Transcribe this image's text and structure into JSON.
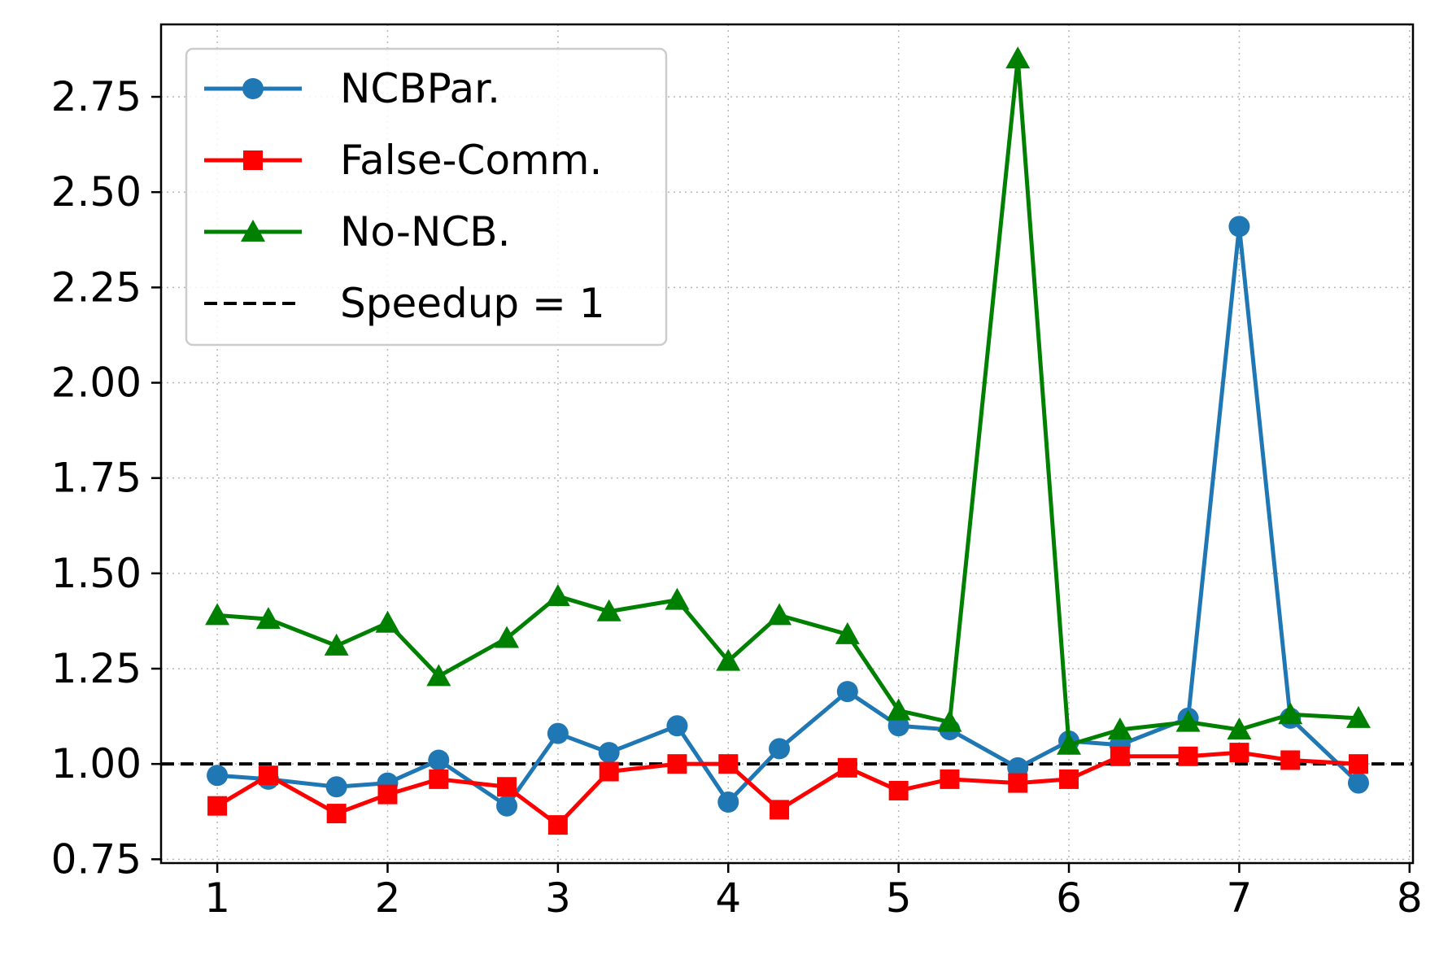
{
  "chart_data": {
    "type": "line",
    "title": "",
    "xlabel": "",
    "ylabel": "",
    "xlim": [
      0.67,
      8.02
    ],
    "ylim": [
      0.74,
      2.94
    ],
    "x_ticks": [
      1,
      2,
      3,
      4,
      5,
      6,
      7,
      8
    ],
    "y_ticks": [
      0.75,
      1.0,
      1.25,
      1.5,
      1.75,
      2.0,
      2.25,
      2.5,
      2.75
    ],
    "x_tick_labels": [
      "1",
      "2",
      "3",
      "4",
      "5",
      "6",
      "7",
      "8"
    ],
    "y_tick_labels": [
      "0.75",
      "1.00",
      "1.25",
      "1.50",
      "1.75",
      "2.00",
      "2.25",
      "2.50",
      "2.75"
    ],
    "grid": true,
    "legend_position": "top-left",
    "x": [
      1.0,
      1.3,
      1.7,
      2.0,
      2.3,
      2.7,
      3.0,
      3.3,
      3.7,
      4.0,
      4.3,
      4.7,
      5.0,
      5.3,
      5.7,
      6.0,
      6.3,
      6.7,
      7.0,
      7.3,
      7.7
    ],
    "series": [
      {
        "name": "NCBPar.",
        "color": "#1f77b4",
        "marker": "circle",
        "values": [
          0.97,
          0.96,
          0.94,
          0.95,
          1.01,
          0.89,
          1.08,
          1.03,
          1.1,
          0.9,
          1.04,
          1.19,
          1.1,
          1.09,
          0.99,
          1.06,
          1.05,
          1.12,
          2.41,
          1.12,
          0.95
        ]
      },
      {
        "name": "False-Comm.",
        "color": "#ff0000",
        "marker": "square",
        "values": [
          0.89,
          0.97,
          0.87,
          0.92,
          0.96,
          0.94,
          0.84,
          0.98,
          1.0,
          1.0,
          0.88,
          0.99,
          0.93,
          0.96,
          0.95,
          0.96,
          1.02,
          1.02,
          1.03,
          1.01,
          1.0
        ]
      },
      {
        "name": "No-NCB.",
        "color": "#008000",
        "marker": "triangle",
        "values": [
          1.39,
          1.38,
          1.31,
          1.37,
          1.23,
          1.33,
          1.44,
          1.4,
          1.43,
          1.27,
          1.39,
          1.34,
          1.14,
          1.11,
          2.85,
          1.05,
          1.09,
          1.11,
          1.09,
          1.13,
          1.12
        ]
      }
    ],
    "reference_line": {
      "name": "Speedup = 1",
      "value": 1.0,
      "color": "#000000",
      "style": "dashed"
    }
  }
}
